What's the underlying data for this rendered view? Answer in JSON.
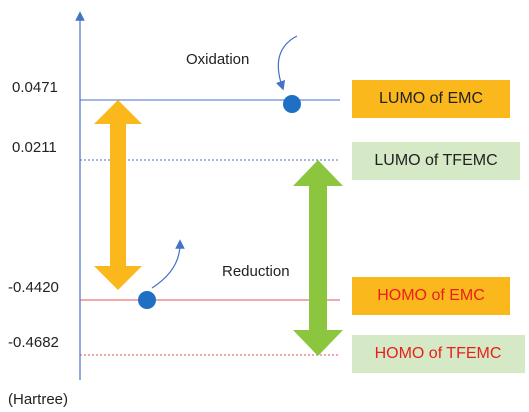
{
  "axis_unit": "(Hartree)",
  "levels": [
    "0.0471",
    "0.0211",
    "-0.4420",
    "-0.4682"
  ],
  "boxes": [
    "LUMO of EMC",
    "LUMO of TFEMC",
    "HOMO of EMC",
    "HOMO of TFEMC"
  ],
  "annotations": [
    "Oxidation",
    "Reduction"
  ]
}
